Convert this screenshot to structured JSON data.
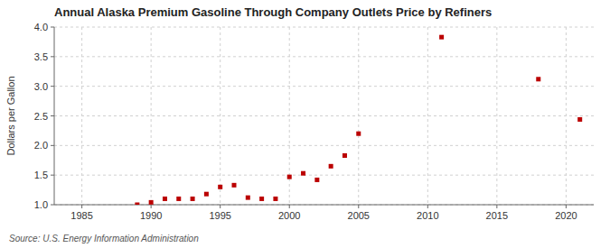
{
  "chart_data": {
    "type": "scatter",
    "title": "Annual Alaska Premium Gasoline Through Company Outlets Price by Refiners",
    "ylabel": "Dollars per Gallon",
    "source": "Source: U.S. Energy Information Administration",
    "x": [
      1989,
      1990,
      1991,
      1992,
      1993,
      1994,
      1995,
      1996,
      1997,
      1998,
      1999,
      2000,
      2001,
      2002,
      2003,
      2004,
      2005,
      2011,
      2018,
      2021
    ],
    "values": [
      1.0,
      1.04,
      1.1,
      1.1,
      1.1,
      1.18,
      1.3,
      1.33,
      1.12,
      1.1,
      1.1,
      1.47,
      1.53,
      1.42,
      1.65,
      1.83,
      2.2,
      3.83,
      3.12,
      2.44
    ],
    "color": "#BB0000",
    "marker": "square",
    "xlim": [
      1983,
      2022
    ],
    "ylim": [
      1.0,
      4.0
    ],
    "xticks": [
      1985,
      1990,
      1995,
      2000,
      2005,
      2010,
      2015,
      2020
    ],
    "yticks": [
      {
        "value": 1.0,
        "label": "1.0"
      },
      1.5,
      {
        "value": 2.0,
        "label": "2.0"
      },
      2.5,
      {
        "value": 3.0,
        "label": "3.0"
      },
      3.5,
      {
        "value": 4.0,
        "label": "4.0"
      }
    ],
    "grid": true
  }
}
